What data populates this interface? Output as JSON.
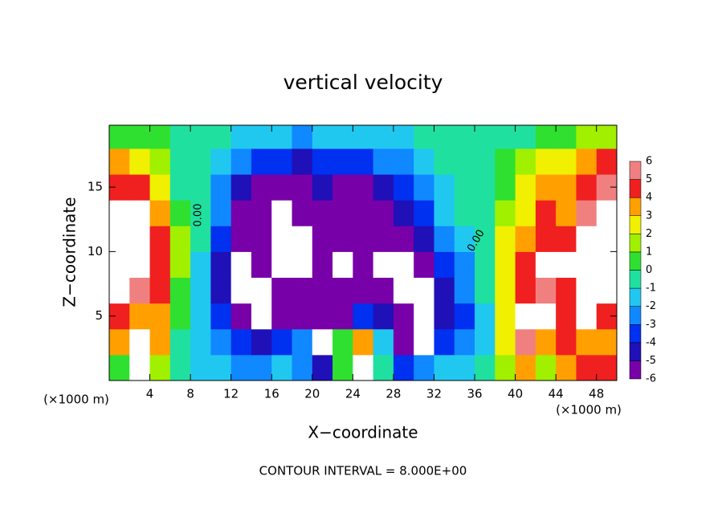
{
  "chart_data": {
    "type": "contour",
    "title": "vertical velocity",
    "x_label": "X−coordinate",
    "y_label": "Z−coordinate",
    "x_unit_left": "(×1000 m)",
    "x_unit_right": "(×1000 m)",
    "footer": "CONTOUR INTERVAL = 8.000E+00",
    "contour_labels": [
      "0.00",
      "0.00"
    ],
    "xlim": [
      0,
      50
    ],
    "ylim": [
      0,
      19.8
    ],
    "xticks": [
      4,
      8,
      12,
      16,
      20,
      24,
      28,
      32,
      36,
      40,
      44,
      48
    ],
    "yticks": [
      5,
      10,
      15
    ],
    "x": [
      1,
      3,
      5,
      7,
      9,
      11,
      13,
      15,
      17,
      19,
      21,
      23,
      25,
      27,
      29,
      31,
      33,
      35,
      37,
      39,
      41,
      43,
      45,
      47,
      49
    ],
    "y": [
      1,
      3,
      5,
      7,
      9,
      11,
      13,
      15,
      17,
      19
    ],
    "z": [
      [
        1,
        8,
        2,
        0,
        -1,
        -1,
        -2,
        -2,
        -1,
        -2,
        -4,
        1,
        8,
        0,
        -3,
        -2,
        -1,
        -1,
        0,
        2,
        4,
        2,
        4,
        5,
        5
      ],
      [
        4,
        8,
        4,
        0,
        -1,
        -2,
        -3,
        -4,
        -3,
        -2,
        -8,
        1,
        4,
        -1,
        -5,
        -8,
        -3,
        -2,
        -1,
        3,
        6,
        4,
        5,
        4,
        4
      ],
      [
        5,
        4,
        4,
        1,
        -1,
        -3,
        -6,
        -8,
        -6,
        -5,
        -5,
        -6,
        -3,
        -4,
        -6,
        -8,
        -4,
        -3,
        -1,
        3,
        8,
        8,
        5,
        8,
        5
      ],
      [
        8,
        6,
        5,
        1,
        -1,
        -4,
        -8,
        -8,
        -6,
        -6,
        -5,
        -6,
        -5,
        -6,
        -8,
        -8,
        -4,
        -2,
        0,
        3,
        5,
        6,
        5,
        8,
        8
      ],
      [
        8,
        8,
        5,
        2,
        -1,
        -4,
        -8,
        -6,
        -8,
        -8,
        -5,
        -8,
        -6,
        -8,
        -8,
        -5,
        -3,
        -2,
        0,
        3,
        5,
        8,
        8,
        8,
        8
      ],
      [
        8,
        8,
        5,
        2,
        0,
        -3,
        -5,
        -6,
        -8,
        -8,
        -5,
        -5,
        -6,
        -6,
        -5,
        -4,
        -2,
        -1,
        0,
        3,
        4,
        5,
        5,
        8,
        8
      ],
      [
        8,
        8,
        4,
        1,
        0,
        -2,
        -5,
        -6,
        -8,
        -6,
        -5,
        -6,
        -6,
        -5,
        -4,
        -3,
        -1,
        0,
        0,
        2,
        3,
        5,
        4,
        6,
        8
      ],
      [
        5,
        5,
        3,
        0,
        0,
        -2,
        -4,
        -5,
        -5,
        -5,
        -4,
        -5,
        -5,
        -4,
        -3,
        -2,
        -1,
        0,
        0,
        1,
        3,
        4,
        4,
        5,
        6
      ],
      [
        4,
        3,
        2,
        0,
        0,
        -1,
        -2,
        -3,
        -3,
        -4,
        -3,
        -3,
        -3,
        -2,
        -2,
        -1,
        0,
        0,
        0,
        1,
        2,
        3,
        3,
        4,
        5
      ],
      [
        1,
        1,
        1,
        0,
        0,
        0,
        -1,
        -1,
        -1,
        -2,
        -1,
        -1,
        -1,
        -1,
        -1,
        0,
        0,
        0,
        0,
        0,
        0,
        1,
        1,
        2,
        2
      ]
    ],
    "colorbar": {
      "levels": [
        -6,
        -5,
        -4,
        -3,
        -2,
        -1,
        0,
        1,
        2,
        3,
        4,
        5,
        6
      ],
      "colors": [
        "#7800a8",
        "#2010b8",
        "#0030f0",
        "#1088ff",
        "#20c8f0",
        "#20e0a0",
        "#30e030",
        "#a0f000",
        "#f0f000",
        "#ffa000",
        "#f02020",
        "#f08080"
      ]
    }
  }
}
